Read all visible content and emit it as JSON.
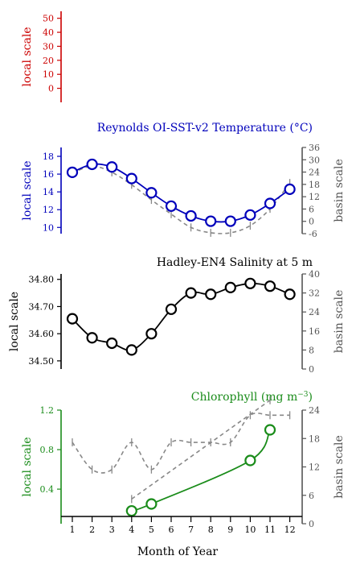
{
  "figure": {
    "xlabel": "Month of Year",
    "xticks": [
      1,
      2,
      3,
      4,
      5,
      6,
      7,
      8,
      9,
      10,
      11,
      12
    ]
  },
  "chart_data": [
    {
      "type": "line",
      "panel": "empty",
      "title": "",
      "ylabel_left": "local scale",
      "ylabel_right": "",
      "left_color": "#cc0000",
      "left_ylim": [
        -10,
        55
      ],
      "left_ticks": [
        0,
        10,
        20,
        30,
        40,
        50
      ],
      "series": []
    },
    {
      "type": "line",
      "panel": "temperature",
      "title": "Reynolds OI-SST-v2 Temperature (°C)",
      "ylabel_left": "local scale",
      "ylabel_right": "basin scale",
      "left_color": "#0000bb",
      "right_color": "#555555",
      "left_ylim": [
        9.3,
        19
      ],
      "left_ticks": [
        10,
        12,
        14,
        16,
        18
      ],
      "right_ylim": [
        -6,
        36
      ],
      "right_ticks": [
        -6,
        0,
        6,
        12,
        18,
        24,
        30,
        36
      ],
      "local": {
        "x": [
          1,
          2,
          3,
          4,
          5,
          6,
          7,
          8,
          9,
          10,
          11,
          12
        ],
        "y": [
          16.2,
          17.1,
          16.8,
          15.5,
          13.9,
          12.4,
          11.3,
          10.7,
          10.7,
          11.4,
          12.7,
          14.3
        ]
      },
      "basin": {
        "x": [
          1,
          2,
          3,
          4,
          5,
          6,
          7,
          8,
          9,
          10,
          11,
          12
        ],
        "y": [
          16.1,
          16.9,
          16.2,
          14.8,
          13.1,
          11.5,
          10.0,
          9.4,
          9.4,
          10.2,
          12.1,
          15.0
        ]
      }
    },
    {
      "type": "line",
      "panel": "salinity",
      "title": "Hadley-EN4 Salinity at 5 m",
      "ylabel_left": "local scale",
      "ylabel_right": "basin scale",
      "left_color": "#000000",
      "right_color": "#555555",
      "left_ylim": [
        34.47,
        34.82
      ],
      "left_ticks": [
        34.5,
        34.6,
        34.7,
        34.8
      ],
      "left_tick_labels": [
        "34.50",
        "34.60",
        "34.70",
        "34.80"
      ],
      "right_ylim": [
        0,
        40
      ],
      "right_ticks": [
        0,
        8,
        16,
        24,
        32,
        40
      ],
      "local": {
        "x": [
          1,
          2,
          3,
          4,
          5,
          6,
          7,
          8,
          9,
          10,
          11,
          12
        ],
        "y": [
          34.655,
          34.585,
          34.565,
          34.54,
          34.6,
          34.69,
          34.75,
          34.745,
          34.77,
          34.785,
          34.775,
          34.745
        ]
      },
      "basin": {
        "x": [
          1,
          2,
          3,
          4,
          5,
          6,
          7,
          8,
          9,
          10,
          11,
          12
        ],
        "y": [
          34.2,
          34.1,
          34.1,
          34.2,
          34.1,
          34.2,
          34.2,
          34.2,
          34.2,
          34.3,
          34.3,
          34.3
        ]
      }
    },
    {
      "type": "line",
      "panel": "chlorophyll",
      "title": "Chlorophyll (mg m",
      "title_sup": "−3",
      "title_end": ")",
      "ylabel_left": "local scale",
      "ylabel_right": "basin scale",
      "left_color": "#1a8c1a",
      "right_color": "#555555",
      "left_ylim": [
        0.05,
        1.2
      ],
      "left_ticks": [
        0.4,
        0.8,
        1.2
      ],
      "right_ylim": [
        0,
        24
      ],
      "right_ticks": [
        0,
        6,
        12,
        18,
        24
      ],
      "local": {
        "x": [
          4,
          5,
          10,
          11
        ],
        "y": [
          0.18,
          0.25,
          0.69,
          1.0
        ]
      },
      "basin": {
        "x": [
          4,
          11
        ],
        "y": [
          0.3,
          1.3
        ]
      }
    }
  ]
}
